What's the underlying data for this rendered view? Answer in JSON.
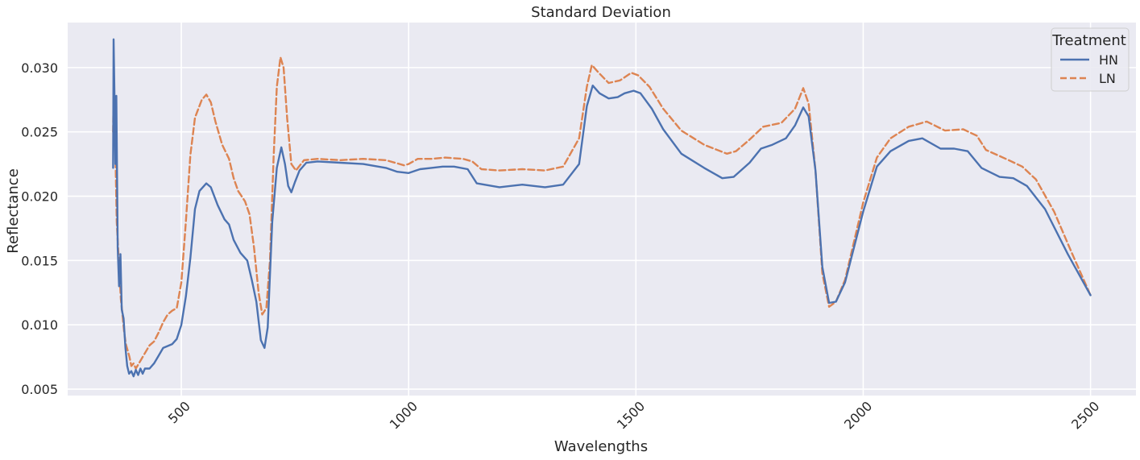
{
  "chart_data": {
    "type": "line",
    "title": "Standard Deviation",
    "xlabel": "Wavelengths",
    "ylabel": "Reflectance",
    "xlim": [
      250,
      2600
    ],
    "ylim": [
      0.0045,
      0.0335
    ],
    "x_ticks": [
      500,
      1000,
      1500,
      2000,
      2500
    ],
    "x_tick_labels": [
      "500",
      "1000",
      "1500",
      "2000",
      "2500"
    ],
    "y_ticks": [
      0.005,
      0.01,
      0.015,
      0.02,
      0.025,
      0.03
    ],
    "y_tick_labels": [
      "0.005",
      "0.010",
      "0.015",
      "0.020",
      "0.025",
      "0.030"
    ],
    "grid": true,
    "legend": {
      "title": "Treatment",
      "position": "top-right"
    },
    "series": [
      {
        "name": "HN",
        "color": "#4c72b0",
        "style": "solid",
        "points": [
          [
            350,
            0.0222
          ],
          [
            351,
            0.0322
          ],
          [
            353,
            0.0278
          ],
          [
            355,
            0.0225
          ],
          [
            357,
            0.0278
          ],
          [
            360,
            0.016
          ],
          [
            363,
            0.013
          ],
          [
            366,
            0.0155
          ],
          [
            369,
            0.0112
          ],
          [
            373,
            0.0105
          ],
          [
            377,
            0.0082
          ],
          [
            381,
            0.0068
          ],
          [
            385,
            0.0062
          ],
          [
            390,
            0.0064
          ],
          [
            395,
            0.006
          ],
          [
            400,
            0.0065
          ],
          [
            405,
            0.0061
          ],
          [
            410,
            0.0066
          ],
          [
            415,
            0.0062
          ],
          [
            420,
            0.0066
          ],
          [
            430,
            0.0066
          ],
          [
            440,
            0.007
          ],
          [
            450,
            0.0076
          ],
          [
            460,
            0.0082
          ],
          [
            480,
            0.0085
          ],
          [
            490,
            0.0089
          ],
          [
            500,
            0.01
          ],
          [
            510,
            0.0122
          ],
          [
            520,
            0.0152
          ],
          [
            530,
            0.019
          ],
          [
            540,
            0.0204
          ],
          [
            555,
            0.021
          ],
          [
            565,
            0.0207
          ],
          [
            580,
            0.0193
          ],
          [
            595,
            0.0182
          ],
          [
            605,
            0.0178
          ],
          [
            615,
            0.0166
          ],
          [
            630,
            0.0156
          ],
          [
            645,
            0.015
          ],
          [
            655,
            0.0135
          ],
          [
            665,
            0.0118
          ],
          [
            675,
            0.0088
          ],
          [
            683,
            0.0082
          ],
          [
            690,
            0.0098
          ],
          [
            700,
            0.018
          ],
          [
            710,
            0.0222
          ],
          [
            720,
            0.0238
          ],
          [
            728,
            0.0225
          ],
          [
            735,
            0.0208
          ],
          [
            742,
            0.0203
          ],
          [
            750,
            0.0211
          ],
          [
            760,
            0.022
          ],
          [
            775,
            0.0226
          ],
          [
            800,
            0.0227
          ],
          [
            850,
            0.0226
          ],
          [
            900,
            0.0225
          ],
          [
            950,
            0.0222
          ],
          [
            975,
            0.0219
          ],
          [
            1000,
            0.0218
          ],
          [
            1025,
            0.0221
          ],
          [
            1050,
            0.0222
          ],
          [
            1075,
            0.0223
          ],
          [
            1100,
            0.0223
          ],
          [
            1130,
            0.0221
          ],
          [
            1150,
            0.021
          ],
          [
            1200,
            0.0207
          ],
          [
            1250,
            0.0209
          ],
          [
            1300,
            0.0207
          ],
          [
            1340,
            0.0209
          ],
          [
            1375,
            0.0225
          ],
          [
            1392,
            0.027
          ],
          [
            1405,
            0.0286
          ],
          [
            1420,
            0.028
          ],
          [
            1440,
            0.0276
          ],
          [
            1460,
            0.0277
          ],
          [
            1475,
            0.028
          ],
          [
            1495,
            0.0282
          ],
          [
            1510,
            0.028
          ],
          [
            1535,
            0.0268
          ],
          [
            1560,
            0.0252
          ],
          [
            1600,
            0.0233
          ],
          [
            1650,
            0.0222
          ],
          [
            1690,
            0.0214
          ],
          [
            1715,
            0.0215
          ],
          [
            1750,
            0.0226
          ],
          [
            1775,
            0.0237
          ],
          [
            1800,
            0.024
          ],
          [
            1830,
            0.0245
          ],
          [
            1850,
            0.0255
          ],
          [
            1868,
            0.0269
          ],
          [
            1880,
            0.0262
          ],
          [
            1895,
            0.022
          ],
          [
            1910,
            0.0145
          ],
          [
            1925,
            0.0117
          ],
          [
            1940,
            0.0118
          ],
          [
            1960,
            0.0133
          ],
          [
            2000,
            0.0188
          ],
          [
            2030,
            0.0223
          ],
          [
            2060,
            0.0235
          ],
          [
            2100,
            0.0243
          ],
          [
            2130,
            0.0245
          ],
          [
            2170,
            0.0237
          ],
          [
            2200,
            0.0237
          ],
          [
            2230,
            0.0235
          ],
          [
            2260,
            0.0222
          ],
          [
            2300,
            0.0215
          ],
          [
            2330,
            0.0214
          ],
          [
            2360,
            0.0208
          ],
          [
            2400,
            0.019
          ],
          [
            2450,
            0.0155
          ],
          [
            2500,
            0.0123
          ]
        ]
      },
      {
        "name": "LN",
        "color": "#dd8452",
        "style": "dashed",
        "points": [
          [
            350,
            0.025
          ],
          [
            351,
            0.028
          ],
          [
            353,
            0.027
          ],
          [
            355,
            0.0235
          ],
          [
            358,
            0.018
          ],
          [
            361,
            0.016
          ],
          [
            364,
            0.014
          ],
          [
            367,
            0.012
          ],
          [
            370,
            0.011
          ],
          [
            374,
            0.0095
          ],
          [
            378,
            0.0085
          ],
          [
            382,
            0.008
          ],
          [
            386,
            0.0075
          ],
          [
            390,
            0.0068
          ],
          [
            395,
            0.007
          ],
          [
            400,
            0.0066
          ],
          [
            410,
            0.0072
          ],
          [
            420,
            0.0078
          ],
          [
            430,
            0.0084
          ],
          [
            440,
            0.0087
          ],
          [
            450,
            0.0094
          ],
          [
            460,
            0.0102
          ],
          [
            470,
            0.0108
          ],
          [
            480,
            0.0111
          ],
          [
            490,
            0.0113
          ],
          [
            500,
            0.0133
          ],
          [
            510,
            0.018
          ],
          [
            520,
            0.0232
          ],
          [
            530,
            0.0261
          ],
          [
            545,
            0.0275
          ],
          [
            555,
            0.0279
          ],
          [
            565,
            0.0273
          ],
          [
            575,
            0.0258
          ],
          [
            590,
            0.024
          ],
          [
            605,
            0.0229
          ],
          [
            615,
            0.0214
          ],
          [
            625,
            0.0204
          ],
          [
            640,
            0.0196
          ],
          [
            650,
            0.0186
          ],
          [
            660,
            0.016
          ],
          [
            670,
            0.0125
          ],
          [
            678,
            0.0108
          ],
          [
            687,
            0.0113
          ],
          [
            695,
            0.015
          ],
          [
            703,
            0.023
          ],
          [
            710,
            0.0285
          ],
          [
            718,
            0.0308
          ],
          [
            725,
            0.03
          ],
          [
            733,
            0.026
          ],
          [
            742,
            0.0225
          ],
          [
            752,
            0.022
          ],
          [
            770,
            0.0228
          ],
          [
            800,
            0.0229
          ],
          [
            850,
            0.0228
          ],
          [
            900,
            0.0229
          ],
          [
            950,
            0.0228
          ],
          [
            990,
            0.0224
          ],
          [
            1000,
            0.0225
          ],
          [
            1020,
            0.0229
          ],
          [
            1050,
            0.0229
          ],
          [
            1080,
            0.023
          ],
          [
            1120,
            0.0229
          ],
          [
            1140,
            0.0227
          ],
          [
            1160,
            0.0221
          ],
          [
            1200,
            0.022
          ],
          [
            1250,
            0.0221
          ],
          [
            1300,
            0.022
          ],
          [
            1340,
            0.0223
          ],
          [
            1375,
            0.0245
          ],
          [
            1392,
            0.0285
          ],
          [
            1403,
            0.0302
          ],
          [
            1418,
            0.0296
          ],
          [
            1440,
            0.0288
          ],
          [
            1465,
            0.029
          ],
          [
            1490,
            0.0296
          ],
          [
            1505,
            0.0294
          ],
          [
            1530,
            0.0285
          ],
          [
            1560,
            0.0268
          ],
          [
            1600,
            0.0251
          ],
          [
            1650,
            0.024
          ],
          [
            1700,
            0.0233
          ],
          [
            1720,
            0.0235
          ],
          [
            1750,
            0.0244
          ],
          [
            1780,
            0.0254
          ],
          [
            1820,
            0.0257
          ],
          [
            1850,
            0.0268
          ],
          [
            1868,
            0.0284
          ],
          [
            1880,
            0.0272
          ],
          [
            1895,
            0.022
          ],
          [
            1910,
            0.014
          ],
          [
            1925,
            0.0114
          ],
          [
            1940,
            0.0118
          ],
          [
            1960,
            0.0135
          ],
          [
            2000,
            0.0195
          ],
          [
            2030,
            0.023
          ],
          [
            2060,
            0.0245
          ],
          [
            2100,
            0.0254
          ],
          [
            2140,
            0.0258
          ],
          [
            2180,
            0.0251
          ],
          [
            2220,
            0.0252
          ],
          [
            2250,
            0.0247
          ],
          [
            2270,
            0.0236
          ],
          [
            2320,
            0.0228
          ],
          [
            2350,
            0.0223
          ],
          [
            2380,
            0.0213
          ],
          [
            2420,
            0.0188
          ],
          [
            2460,
            0.0155
          ],
          [
            2500,
            0.0123
          ]
        ]
      }
    ]
  }
}
